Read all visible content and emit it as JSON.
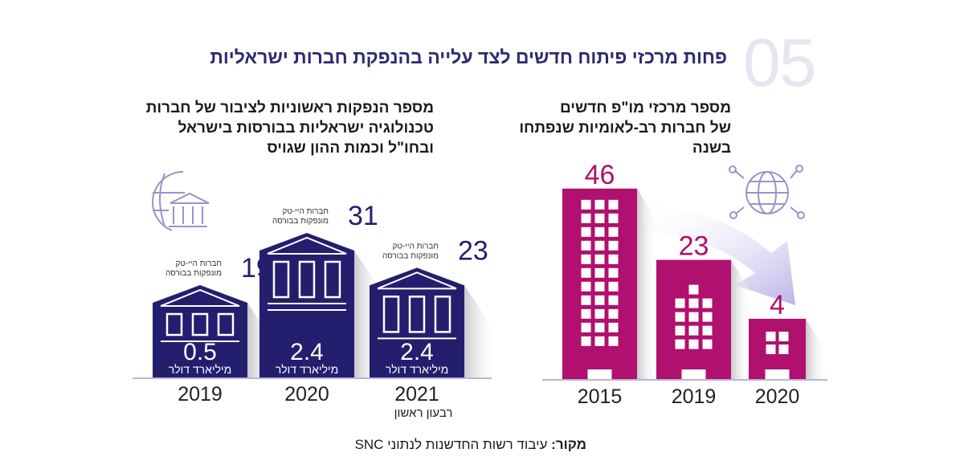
{
  "header": {
    "number": "05",
    "title": "פחות מרכזי פיתוח חדשים לצד עלייה בהנפקת חברות ישראליות"
  },
  "colors": {
    "navy": "#231f6e",
    "magenta": "#b0106e",
    "lavender": "#b9b3de",
    "title": "#2c2a72"
  },
  "icons": {
    "left": "globe-bank-icon",
    "right": "globe-network-icon"
  },
  "source": {
    "label": "מקור:",
    "text": " עיבוד רשות החדשנות לנתוני SNC"
  },
  "chart_data": [
    {
      "type": "bar",
      "title": "מספר הנפקות ראשוניות לציבור של חברות טכנולוגיה ישראליות בבורסות בישראל ובחו\"ל וכמות ההון שגויס",
      "title_lines": [
        "מספר הנפקות ראשוניות לציבור של חברות",
        "טכנולוגיה ישראליות בבורסות בישראל",
        "ובחו\"ל וכמות ההון שגויס"
      ],
      "categories": [
        "2019",
        "2020",
        "2021"
      ],
      "category_notes": [
        "",
        "",
        "רבעון ראשון"
      ],
      "series": [
        {
          "name": "חברות הייטק מונפקות בבורסה",
          "values": [
            19,
            31,
            23
          ]
        },
        {
          "name": "מיליארד דולר",
          "values": [
            0.5,
            2.4,
            2.4
          ]
        }
      ],
      "count_label_lines": [
        "חברות היי-טק",
        "מונפקות בבורסה"
      ],
      "value_unit": "מיליארד דולר",
      "value_labels": [
        "0.5",
        "2.4",
        "2.4"
      ]
    },
    {
      "type": "bar",
      "title": "מספר מרכזי מו\"פ חדשים של חברות רב-לאומיות שנפתחו בשנה",
      "title_lines": [
        "מספר מרכזי מו\"פ חדשים",
        "של חברות רב-לאומיות שנפתחו בשנה"
      ],
      "categories": [
        "2015",
        "2019",
        "2020"
      ],
      "values": [
        46,
        23,
        4
      ]
    }
  ]
}
